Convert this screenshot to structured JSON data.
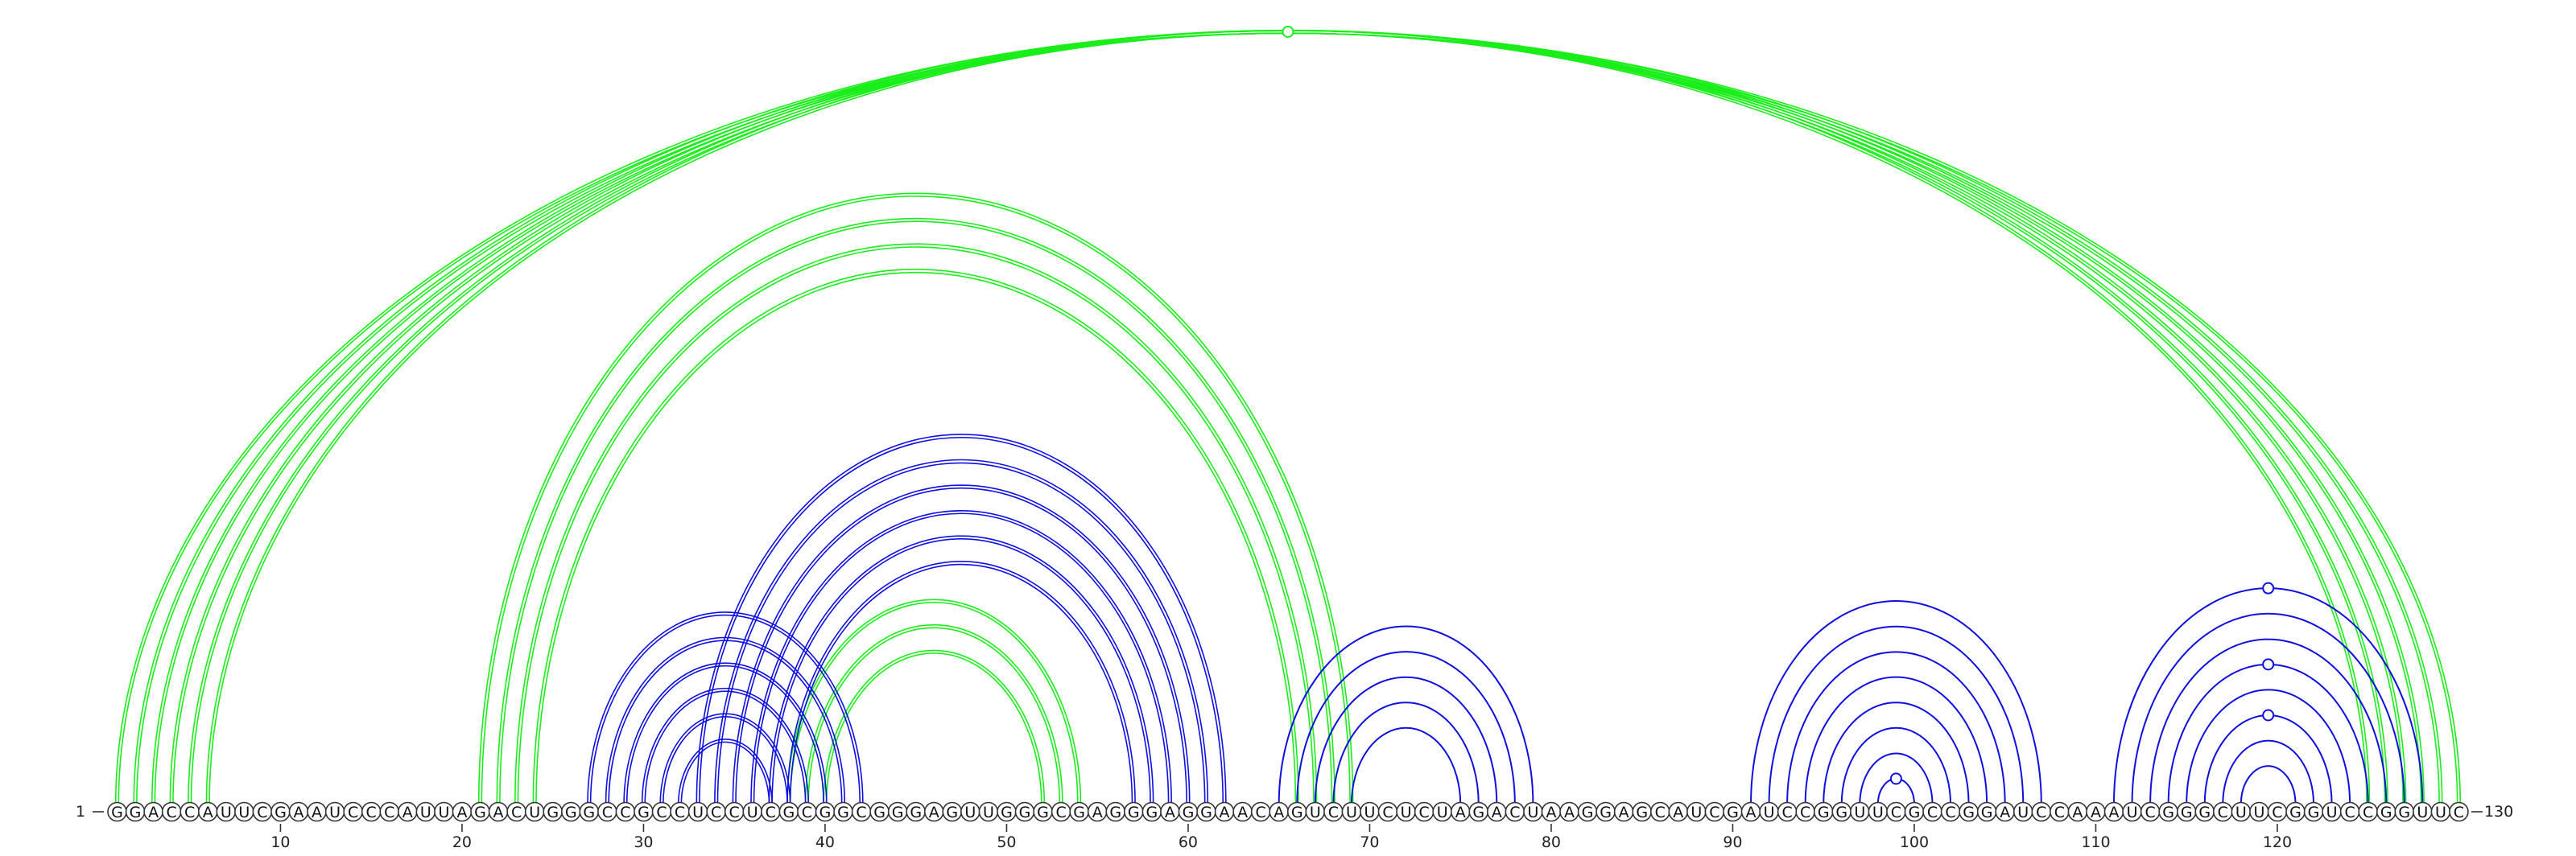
{
  "sequence": "GGACCAUUCGAAUCCCAUUAGACUGGGCCGCCUCCUCGCGGCGGGAGUUGGGCGAGGGAGGAACAGUCUUCUCUAGACUAAGGAGCAUCGAUCCGGUUCGCCGGAUCCAAAUCGGGCUUCGGUCCGGUUC",
  "start_label": "1",
  "end_label": "130",
  "ticks": [
    10,
    20,
    30,
    40,
    50,
    60,
    70,
    80,
    90,
    100,
    110,
    120
  ],
  "colors": {
    "structure_a": "#1aee1a",
    "structure_b": "#0f0fe0"
  },
  "arcs": [
    {
      "i": 1,
      "j": 130,
      "set": "a",
      "double": true
    },
    {
      "i": 2,
      "j": 129,
      "set": "a",
      "double": true
    },
    {
      "i": 3,
      "j": 128,
      "set": "a",
      "double": true
    },
    {
      "i": 4,
      "j": 127,
      "set": "a",
      "double": true
    },
    {
      "i": 5,
      "j": 126,
      "set": "a",
      "double": true
    },
    {
      "i": 6,
      "j": 125,
      "set": "a",
      "double": true
    },
    {
      "i": 21,
      "j": 69,
      "set": "a",
      "double": true
    },
    {
      "i": 22,
      "j": 68,
      "set": "a",
      "double": true
    },
    {
      "i": 23,
      "j": 67,
      "set": "a",
      "double": true
    },
    {
      "i": 24,
      "j": 66,
      "set": "a",
      "double": true
    },
    {
      "i": 38,
      "j": 54,
      "set": "a",
      "double": true
    },
    {
      "i": 39,
      "j": 53,
      "set": "a",
      "double": true
    },
    {
      "i": 40,
      "j": 52,
      "set": "a",
      "double": true
    },
    {
      "i": 27,
      "j": 42,
      "set": "b",
      "double": true
    },
    {
      "i": 28,
      "j": 41,
      "set": "b",
      "double": true
    },
    {
      "i": 29,
      "j": 40,
      "set": "b",
      "double": true
    },
    {
      "i": 30,
      "j": 39,
      "set": "b",
      "double": true
    },
    {
      "i": 31,
      "j": 38,
      "set": "b",
      "double": true
    },
    {
      "i": 32,
      "j": 37,
      "set": "b",
      "double": true
    },
    {
      "i": 33,
      "j": 62,
      "set": "b",
      "double": true
    },
    {
      "i": 34,
      "j": 61,
      "set": "b",
      "double": true
    },
    {
      "i": 35,
      "j": 60,
      "set": "b",
      "double": true
    },
    {
      "i": 36,
      "j": 59,
      "set": "b",
      "double": true
    },
    {
      "i": 37,
      "j": 58,
      "set": "b",
      "double": true
    },
    {
      "i": 38,
      "j": 57,
      "set": "b",
      "double": true
    },
    {
      "i": 65,
      "j": 79,
      "set": "b",
      "double": false
    },
    {
      "i": 66,
      "j": 78,
      "set": "b",
      "double": false
    },
    {
      "i": 67,
      "j": 77,
      "set": "b",
      "double": false
    },
    {
      "i": 68,
      "j": 76,
      "set": "b",
      "double": false
    },
    {
      "i": 69,
      "j": 75,
      "set": "b",
      "double": false
    },
    {
      "i": 91,
      "j": 107,
      "set": "b",
      "double": false
    },
    {
      "i": 92,
      "j": 106,
      "set": "b",
      "double": false
    },
    {
      "i": 93,
      "j": 105,
      "set": "b",
      "double": false
    },
    {
      "i": 94,
      "j": 104,
      "set": "b",
      "double": false
    },
    {
      "i": 95,
      "j": 103,
      "set": "b",
      "double": false
    },
    {
      "i": 96,
      "j": 102,
      "set": "b",
      "double": false
    },
    {
      "i": 97,
      "j": 101,
      "set": "b",
      "double": false
    },
    {
      "i": 98,
      "j": 100,
      "set": "b",
      "double": false
    },
    {
      "i": 111,
      "j": 128,
      "set": "b",
      "double": false
    },
    {
      "i": 112,
      "j": 127,
      "set": "b",
      "double": false
    },
    {
      "i": 113,
      "j": 126,
      "set": "b",
      "double": false
    },
    {
      "i": 114,
      "j": 125,
      "set": "b",
      "double": false
    },
    {
      "i": 115,
      "j": 124,
      "set": "b",
      "double": false
    },
    {
      "i": 116,
      "j": 123,
      "set": "b",
      "double": false
    },
    {
      "i": 117,
      "j": 122,
      "set": "b",
      "double": false
    },
    {
      "i": 118,
      "j": 121,
      "set": "b",
      "double": false
    }
  ],
  "arc_markers": [
    {
      "i": 1,
      "j": 130,
      "set": "a"
    },
    {
      "i": 98,
      "j": 100,
      "set": "b"
    },
    {
      "i": 111,
      "j": 128,
      "set": "b"
    },
    {
      "i": 114,
      "j": 125,
      "set": "b"
    },
    {
      "i": 116,
      "j": 123,
      "set": "b"
    }
  ]
}
